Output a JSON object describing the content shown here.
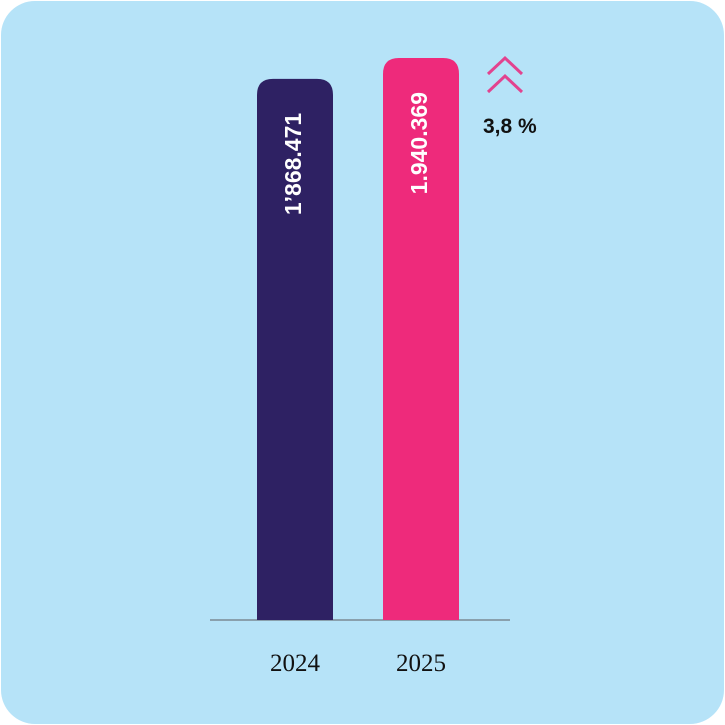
{
  "chart_data": {
    "type": "bar",
    "categories": [
      "2024",
      "2025"
    ],
    "values": [
      1868471,
      1940369
    ],
    "value_labels": [
      "1’868.471",
      "1.940.369"
    ],
    "colors": [
      "#2e2163",
      "#ee2a7b"
    ],
    "annotation": "3,8 %"
  }
}
